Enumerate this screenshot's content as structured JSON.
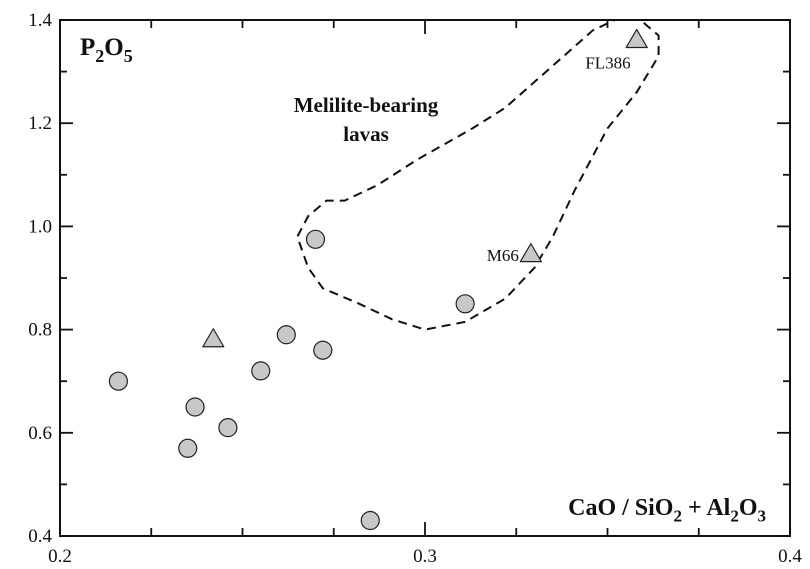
{
  "chart_data": {
    "type": "scatter",
    "title": "",
    "xlabel_parts": [
      {
        "t": "CaO / SiO"
      },
      {
        "t": "2",
        "sub": true
      },
      {
        "t": " + Al"
      },
      {
        "t": "2",
        "sub": true
      },
      {
        "t": "O"
      },
      {
        "t": "3",
        "sub": true
      }
    ],
    "ylabel_parts": [
      {
        "t": "P"
      },
      {
        "t": "2",
        "sub": true
      },
      {
        "t": "O"
      },
      {
        "t": "5",
        "sub": true
      }
    ],
    "xlim": [
      0.2,
      0.4
    ],
    "ylim": [
      0.4,
      1.4
    ],
    "x_ticks": [
      "0.2",
      "0.3",
      "0.4"
    ],
    "y_ticks": [
      "0.4",
      "0.6",
      "0.8",
      "1.0",
      "1.2",
      "1.4"
    ],
    "grid": false,
    "marker_fill": "#c8c8c8",
    "series": [
      {
        "marker": "circle",
        "points": [
          {
            "x": 0.216,
            "y": 0.7
          },
          {
            "x": 0.235,
            "y": 0.57
          },
          {
            "x": 0.237,
            "y": 0.65
          },
          {
            "x": 0.246,
            "y": 0.61
          },
          {
            "x": 0.255,
            "y": 0.72
          },
          {
            "x": 0.262,
            "y": 0.79
          },
          {
            "x": 0.27,
            "y": 0.975
          },
          {
            "x": 0.272,
            "y": 0.76
          },
          {
            "x": 0.285,
            "y": 0.43
          },
          {
            "x": 0.311,
            "y": 0.85
          }
        ]
      },
      {
        "marker": "triangle",
        "points": [
          {
            "x": 0.242,
            "y": 0.78
          },
          {
            "x": 0.329,
            "y": 0.945,
            "label": "M66"
          },
          {
            "x": 0.358,
            "y": 1.36,
            "label": "FL386"
          }
        ]
      }
    ],
    "region": {
      "label_lines": [
        "Melilite-bearing",
        "lavas"
      ],
      "outline": [
        [
          0.352,
          1.4
        ],
        [
          0.359,
          1.4
        ],
        [
          0.364,
          1.37
        ],
        [
          0.364,
          1.33
        ],
        [
          0.358,
          1.26
        ],
        [
          0.35,
          1.19
        ],
        [
          0.341,
          1.07
        ],
        [
          0.335,
          0.98
        ],
        [
          0.33,
          0.92
        ],
        [
          0.322,
          0.86
        ],
        [
          0.311,
          0.815
        ],
        [
          0.3,
          0.8
        ],
        [
          0.291,
          0.82
        ],
        [
          0.282,
          0.85
        ],
        [
          0.272,
          0.88
        ],
        [
          0.268,
          0.92
        ],
        [
          0.265,
          0.98
        ],
        [
          0.268,
          1.02
        ],
        [
          0.273,
          1.05
        ],
        [
          0.278,
          1.05
        ],
        [
          0.287,
          1.08
        ],
        [
          0.298,
          1.13
        ],
        [
          0.313,
          1.19
        ],
        [
          0.322,
          1.23
        ],
        [
          0.33,
          1.28
        ],
        [
          0.338,
          1.33
        ],
        [
          0.346,
          1.38
        ],
        [
          0.352,
          1.4
        ]
      ]
    }
  }
}
